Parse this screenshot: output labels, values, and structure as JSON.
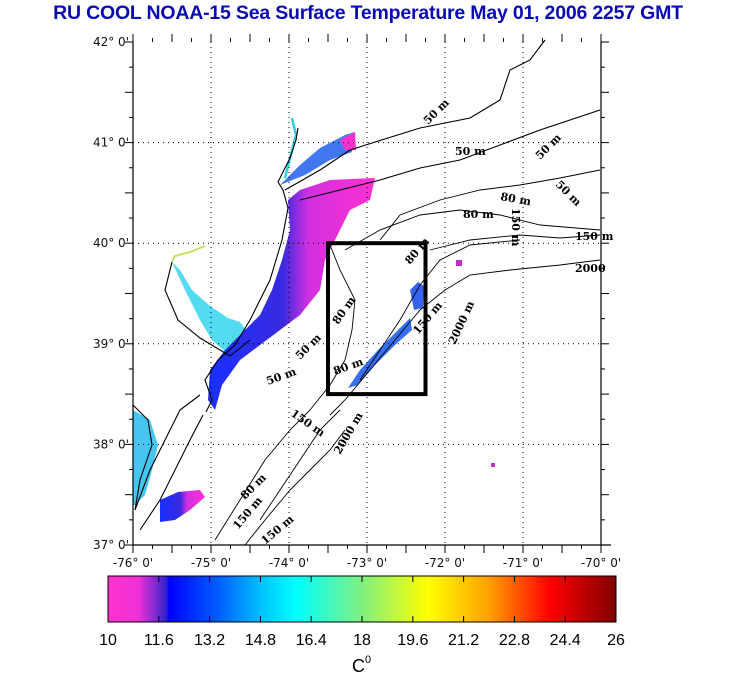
{
  "title": "RU COOL  NOAA-15 Sea Surface Temperature May 01, 2006 2257 GMT",
  "map": {
    "lon_range": [
      -76,
      -70
    ],
    "lat_range": [
      37,
      42
    ],
    "lon_ticks": [
      "-76° 0'",
      "-75° 0'",
      "-74° 0'",
      "-73° 0'",
      "-72° 0'",
      "-71° 0'",
      "-70° 0'"
    ],
    "lat_ticks": [
      "42° 0'",
      "41° 0'",
      "40° 0'",
      "39° 0'",
      "38° 0'",
      "37° 0'"
    ],
    "grid": "dotted",
    "region_box": {
      "lon": [
        -73.5,
        -72.25
      ],
      "lat": [
        38.5,
        40.0
      ]
    },
    "contour_labels": [
      "50 m",
      "50 m",
      "50 m",
      "50 m",
      "50 m",
      "50 m",
      "80 m",
      "80 m",
      "80 m",
      "80 m",
      "80 m",
      "150 m",
      "150 m",
      "150 m",
      "150 m",
      "150 m",
      "2000",
      "2000 m",
      "2000 m",
      "80 m",
      "150 m"
    ]
  },
  "colorbar": {
    "min": 10,
    "max": 26,
    "ticks": [
      "10",
      "11.6",
      "13.2",
      "14.8",
      "16.4",
      "18",
      "19.6",
      "21.2",
      "22.8",
      "24.4",
      "26"
    ],
    "unit_label": "C",
    "unit_superscript": "0",
    "colors": [
      "#ff33cc",
      "#e040e0",
      "#5a2ad0",
      "#0000ff",
      "#0070ff",
      "#00c8ff",
      "#00ffff",
      "#40f0a0",
      "#a0f050",
      "#ffff00",
      "#ffc000",
      "#ff7000",
      "#ff1000",
      "#c00000",
      "#800000"
    ]
  }
}
